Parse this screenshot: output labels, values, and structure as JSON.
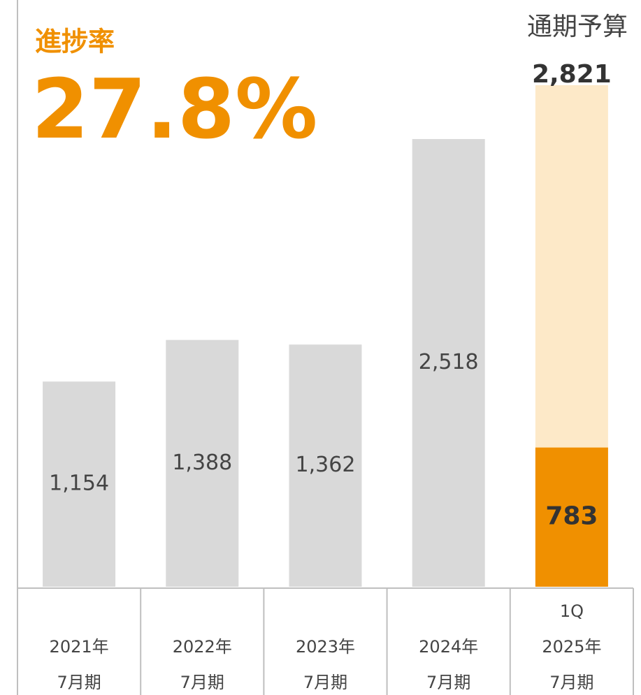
{
  "chart_data": {
    "type": "bar",
    "progress_label": "進捗率",
    "progress_value": 27.8,
    "progress_value_label": "27.8%",
    "categories": [
      [
        "2021年",
        "7月期"
      ],
      [
        "2022年",
        "7月期"
      ],
      [
        "2023年",
        "7月期"
      ],
      [
        "2024年",
        "7月期"
      ],
      [
        "1Q",
        "2025年",
        "7月期"
      ]
    ],
    "values": [
      1154,
      1388,
      1362,
      2518,
      783
    ],
    "value_labels": [
      "1,154",
      "1,388",
      "1,362",
      "2,518",
      "783"
    ],
    "colors": [
      "#d9d9d9",
      "#d9d9d9",
      "#d9d9d9",
      "#d9d9d9",
      "#f09000"
    ],
    "budget": {
      "label": "通期予算",
      "value": 2821,
      "value_label": "2,821",
      "color": "#fde9c8"
    },
    "ylim": [
      0,
      3300
    ]
  }
}
